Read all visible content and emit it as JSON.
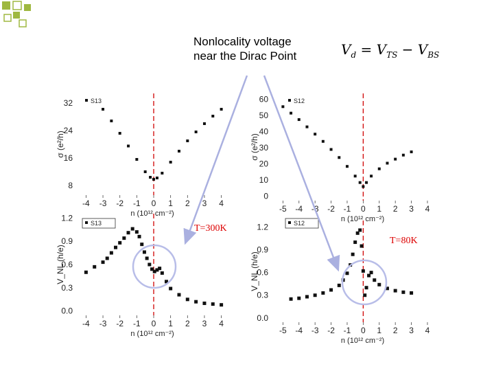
{
  "slide": {
    "title_line1": "Nonlocality voltage",
    "title_line2": "near the Dirac Point",
    "equation": {
      "lhs": "V",
      "lhs_sub": "d",
      "eq": " = V",
      "t1_sub": "TS",
      "minus": " − V",
      "t2_sub": "BS"
    },
    "colors": {
      "accent_squares": "#9fb840",
      "arrow": "#aab0e0",
      "dirac_line": "#d00000"
    }
  },
  "chart_data": [
    {
      "type": "scatter",
      "legend": [
        "S13"
      ],
      "ylabel": "σ (e²/h)",
      "xlabel": "n (10¹² cm⁻²)",
      "xlim": [
        -4.3,
        4.3
      ],
      "ylim": [
        6,
        34
      ],
      "xticks": [
        "-4",
        "-3",
        "-2",
        "-1",
        "0",
        "1",
        "2",
        "3",
        "4"
      ],
      "yticks": [
        "32",
        "24",
        "16",
        "8"
      ],
      "series": [
        {
          "name": "S13",
          "x": [
            -3,
            -2.5,
            -2,
            -1.5,
            -1,
            -0.5,
            -0.2,
            0,
            0.2,
            0.5,
            1,
            1.5,
            2,
            2.5,
            3,
            3.5,
            4
          ],
          "y": [
            30.2,
            26.8,
            23.2,
            19.5,
            15.6,
            12.0,
            10.4,
            9.8,
            10.2,
            11.6,
            14.8,
            18.0,
            21.0,
            23.6,
            26.0,
            28.2,
            30.2
          ]
        }
      ]
    },
    {
      "type": "scatter",
      "legend": [
        "S12"
      ],
      "ylabel": "σ (e²/h)",
      "xlabel": "n (10¹² cm⁻²)",
      "xlim": [
        -5.4,
        4.3
      ],
      "ylim": [
        -1,
        62
      ],
      "xticks": [
        "-5",
        "-4",
        "-3",
        "-2",
        "-1",
        "0",
        "1",
        "2",
        "3",
        "4"
      ],
      "yticks": [
        "60",
        "50",
        "40",
        "30",
        "20",
        "10",
        "0"
      ],
      "series": [
        {
          "name": "S12",
          "x": [
            -5,
            -4.5,
            -4,
            -3.5,
            -3,
            -2.5,
            -2,
            -1.5,
            -1,
            -0.5,
            -0.2,
            0,
            0.2,
            0.5,
            1,
            1.5,
            2,
            2.5,
            3
          ],
          "y": [
            55.5,
            51.5,
            47.5,
            43.0,
            38.5,
            34.0,
            29.0,
            24.0,
            18.5,
            12.5,
            8.5,
            6.0,
            8.5,
            12.5,
            17.0,
            20.5,
            23.0,
            25.5,
            27.5
          ]
        }
      ]
    },
    {
      "type": "scatter",
      "legend": [
        "S13"
      ],
      "ylabel": "V_NL (h/e)",
      "xlabel": "n (10¹² cm⁻²)",
      "xlim": [
        -4.3,
        4.3
      ],
      "ylim": [
        -0.02,
        1.22
      ],
      "xticks": [
        "-4",
        "-3",
        "-2",
        "-1",
        "0",
        "1",
        "2",
        "3",
        "4"
      ],
      "yticks": [
        "1.2",
        "0.9",
        "0.6",
        "0.3",
        "0.0"
      ],
      "annotation": "T=300K",
      "series": [
        {
          "name": "S13",
          "x": [
            -4,
            -3.5,
            -3,
            -2.75,
            -2.5,
            -2.25,
            -2,
            -1.75,
            -1.5,
            -1.25,
            -1.0,
            -0.85,
            -0.7,
            -0.55,
            -0.4,
            -0.25,
            -0.1,
            0.05,
            0.2,
            0.35,
            0.5,
            0.75,
            1,
            1.5,
            2,
            2.5,
            3,
            3.5,
            4
          ],
          "y": [
            0.5,
            0.57,
            0.63,
            0.68,
            0.75,
            0.82,
            0.88,
            0.94,
            1.01,
            1.06,
            1.02,
            0.96,
            0.86,
            0.76,
            0.68,
            0.6,
            0.54,
            0.51,
            0.53,
            0.55,
            0.49,
            0.38,
            0.29,
            0.21,
            0.15,
            0.12,
            0.1,
            0.09,
            0.08
          ]
        }
      ]
    },
    {
      "type": "scatter",
      "legend": [
        "S12"
      ],
      "ylabel": "V_NL (h/e)",
      "xlabel": "n (10¹² cm⁻²)",
      "xlim": [
        -5.4,
        4.3
      ],
      "ylim": [
        -0.02,
        1.25
      ],
      "xticks": [
        "-5",
        "-4",
        "-3",
        "-2",
        "-1",
        "0",
        "1",
        "2",
        "3",
        "4"
      ],
      "yticks": [
        "1.2",
        "0.9",
        "0.6",
        "0.3",
        "0.0"
      ],
      "annotation": "T=80K",
      "series": [
        {
          "name": "S12",
          "x": [
            -4.5,
            -4,
            -3.5,
            -3,
            -2.5,
            -2,
            -1.5,
            -1.25,
            -1.0,
            -0.8,
            -0.65,
            -0.5,
            -0.35,
            -0.2,
            -0.1,
            0.0,
            0.1,
            0.2,
            0.35,
            0.5,
            0.7,
            1.0,
            1.5,
            2,
            2.5,
            3
          ],
          "y": [
            0.25,
            0.26,
            0.28,
            0.3,
            0.33,
            0.37,
            0.43,
            0.5,
            0.59,
            0.7,
            0.84,
            1.0,
            1.12,
            1.16,
            0.95,
            0.62,
            0.3,
            0.4,
            0.56,
            0.6,
            0.5,
            0.44,
            0.39,
            0.36,
            0.34,
            0.33
          ]
        }
      ]
    }
  ]
}
